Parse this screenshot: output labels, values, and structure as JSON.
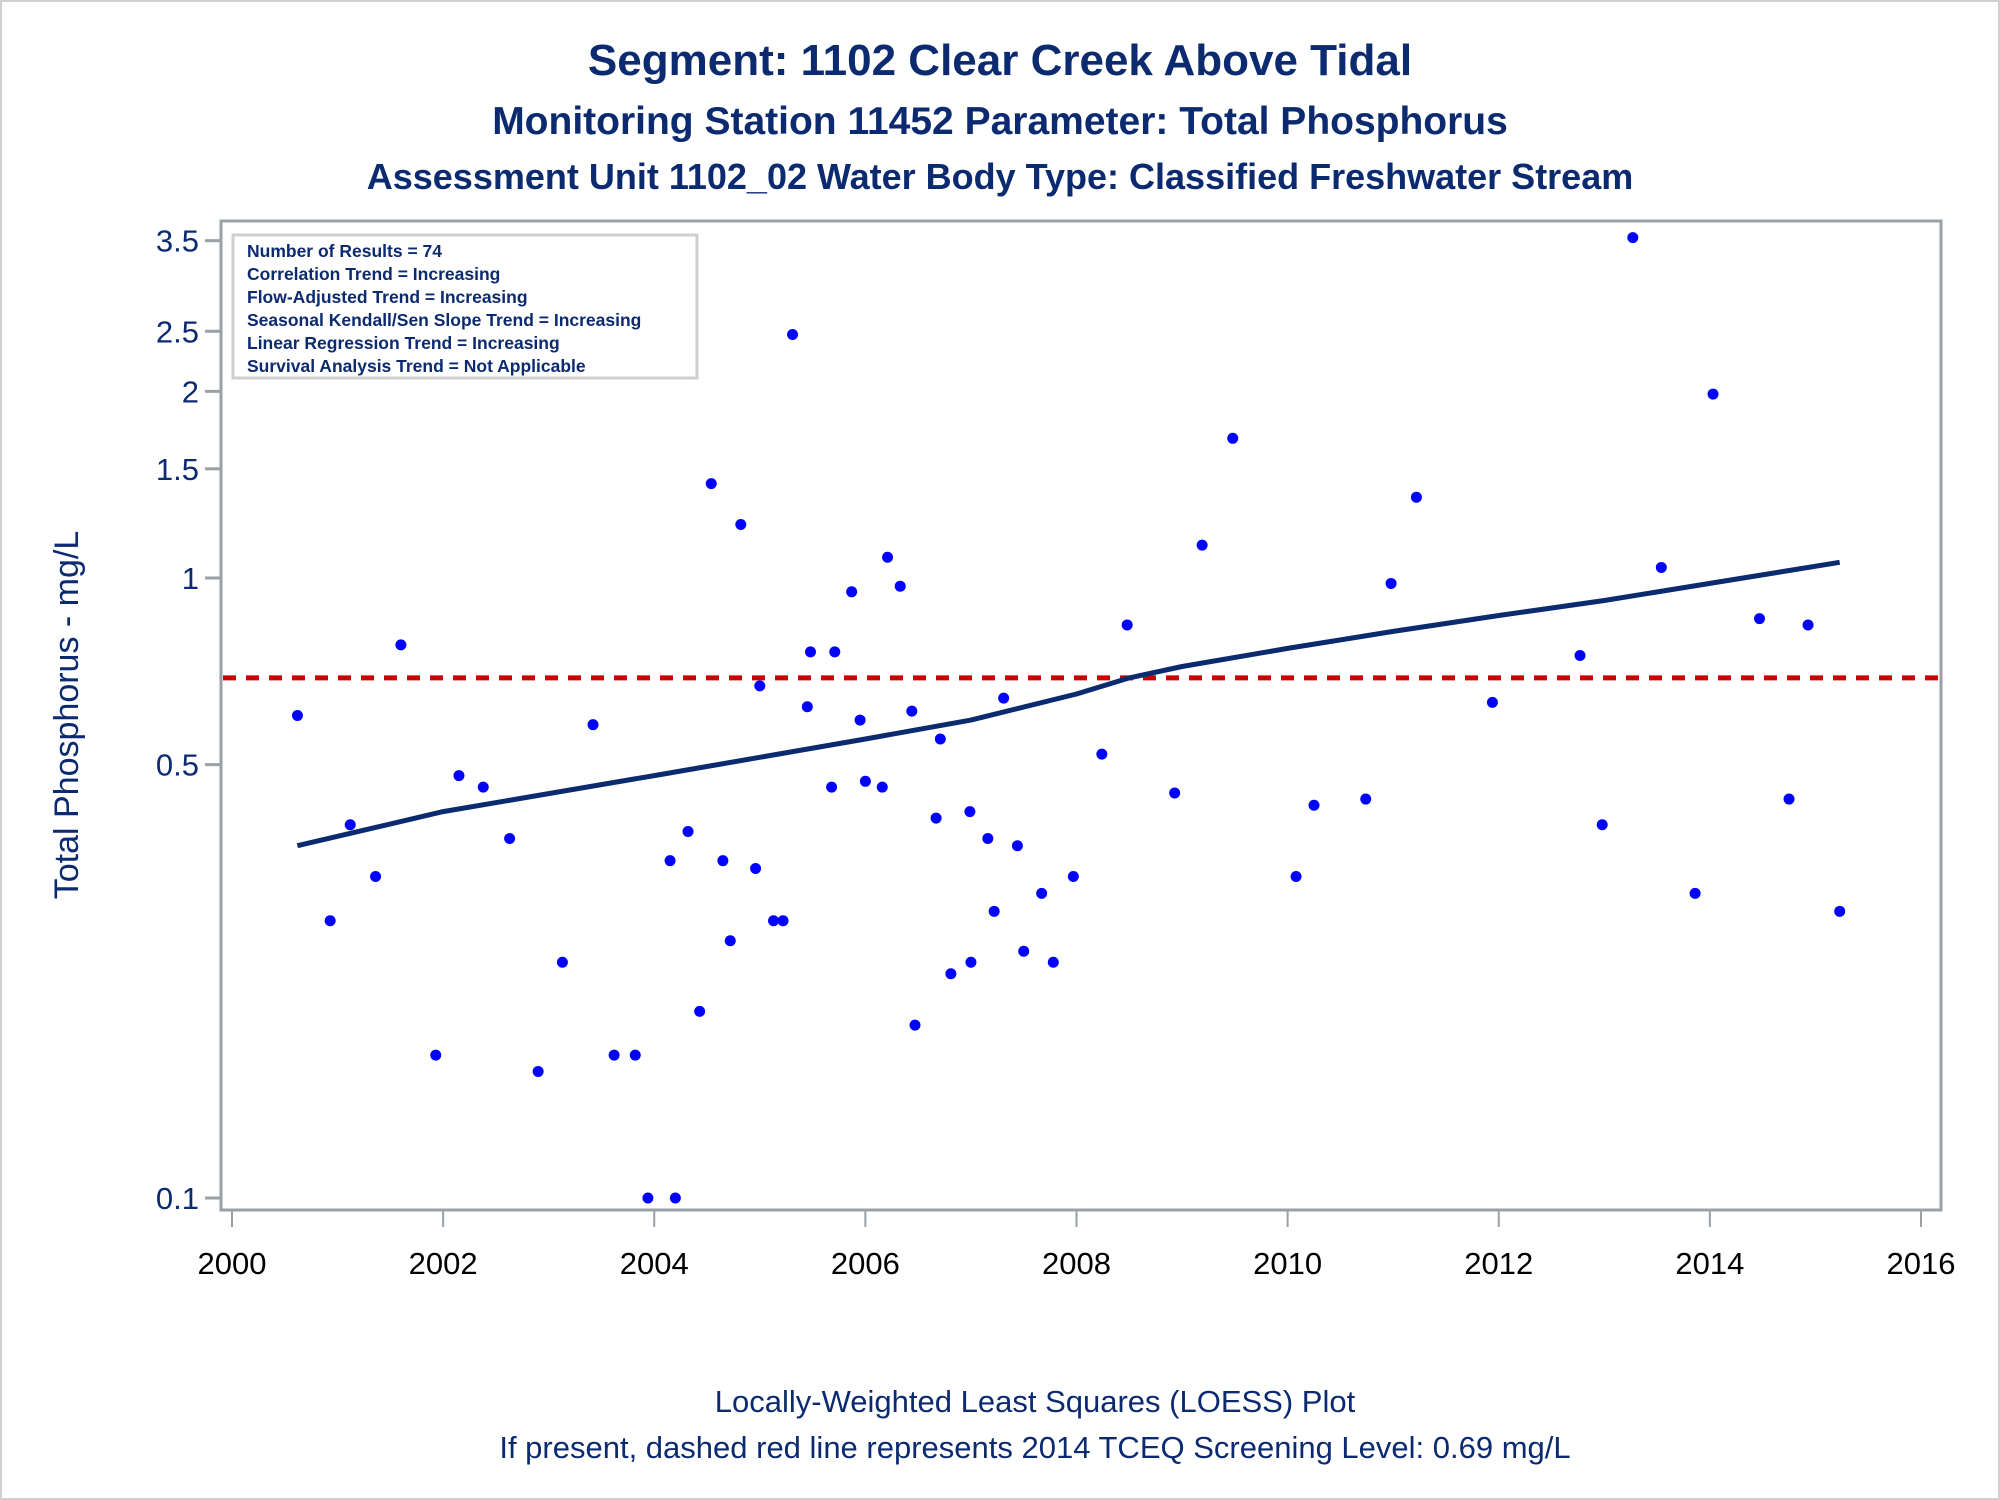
{
  "titles": {
    "line1": "Segment: 1102  Clear Creek Above Tidal",
    "line2": "Monitoring Station 11452 Parameter: Total Phosphorus",
    "line3": "Assessment Unit 1102_02   Water Body Type: Classified Freshwater Stream"
  },
  "footnotes": {
    "line1": "Locally-Weighted Least Squares (LOESS) Plot",
    "line2": "If present, dashed red line represents 2014 TCEQ Screening Level: 0.69 mg/L"
  },
  "inset": [
    "Number of Results = 74",
    "Correlation Trend = Increasing",
    "Flow-Adjusted Trend = Increasing",
    "Seasonal Kendall/Sen Slope Trend = Increasing",
    "Linear Regression Trend = Increasing",
    "Survival Analysis Trend = Not Applicable"
  ],
  "colors": {
    "points": "#0000ff",
    "loess": "#0b2a6f",
    "screening": "#cc0000",
    "axis": "#9aa0a6",
    "text": "#0b2a6f"
  },
  "chart_data": {
    "type": "scatter",
    "title": "Segment: 1102  Clear Creek Above Tidal",
    "xlabel": "",
    "ylabel": "Total Phosphorus - mg/L",
    "yscale": "log",
    "xlim": [
      2000,
      2016
    ],
    "ylim": [
      0.095,
      3.7
    ],
    "xticks": [
      2000,
      2002,
      2004,
      2006,
      2008,
      2010,
      2012,
      2014,
      2016
    ],
    "yticks": [
      0.1,
      0.5,
      1,
      1.5,
      2,
      2.5,
      3.5
    ],
    "ytick_labels": [
      "0.1",
      "0.5",
      "1",
      "1.5",
      "2",
      "2.5",
      "3.5"
    ],
    "grid": false,
    "legend": "inset top-left",
    "screening_level": 0.69,
    "series": [
      {
        "name": "Total Phosphorus observations",
        "x": [
          2000.62,
          2000.93,
          2001.12,
          2001.36,
          2001.6,
          2001.93,
          2002.15,
          2002.38,
          2002.63,
          2002.9,
          2003.13,
          2003.42,
          2003.62,
          2003.82,
          2003.94,
          2004.2,
          2004.15,
          2004.32,
          2004.43,
          2004.54,
          2004.65,
          2004.72,
          2004.82,
          2004.96,
          2005.0,
          2005.13,
          2005.22,
          2005.31,
          2005.45,
          2005.48,
          2005.68,
          2005.71,
          2005.87,
          2005.95,
          2006.0,
          2006.16,
          2006.21,
          2006.33,
          2006.44,
          2006.47,
          2006.67,
          2006.71,
          2006.81,
          2006.99,
          2007.0,
          2007.16,
          2007.22,
          2007.31,
          2007.44,
          2007.5,
          2007.67,
          2007.78,
          2007.97,
          2008.24,
          2008.48,
          2008.93,
          2009.19,
          2009.48,
          2010.08,
          2010.25,
          2010.74,
          2010.98,
          2011.22,
          2011.94,
          2012.77,
          2012.98,
          2013.27,
          2013.54,
          2013.86,
          2014.03,
          2014.47,
          2014.75,
          2014.93,
          2015.23
        ],
        "y": [
          0.6,
          0.28,
          0.4,
          0.33,
          0.78,
          0.17,
          0.48,
          0.46,
          0.38,
          0.16,
          0.24,
          0.58,
          0.17,
          0.17,
          0.1,
          0.1,
          0.35,
          0.39,
          0.2,
          1.42,
          0.35,
          0.26,
          1.22,
          0.34,
          0.67,
          0.28,
          0.28,
          2.47,
          0.62,
          0.76,
          0.46,
          0.76,
          0.95,
          0.59,
          0.47,
          0.46,
          1.08,
          0.97,
          0.61,
          0.19,
          0.41,
          0.55,
          0.23,
          0.42,
          0.24,
          0.38,
          0.29,
          0.64,
          0.37,
          0.25,
          0.31,
          0.24,
          0.33,
          0.52,
          0.84,
          0.45,
          1.13,
          1.68,
          0.33,
          0.43,
          0.44,
          0.98,
          1.35,
          0.63,
          0.75,
          0.4,
          3.54,
          1.04,
          0.31,
          1.98,
          0.86,
          0.44,
          0.84,
          0.29
        ]
      },
      {
        "name": "LOESS fit",
        "x": [
          2000.62,
          2002.0,
          2004.0,
          2006.0,
          2007.0,
          2008.0,
          2008.5,
          2009.0,
          2010.0,
          2011.0,
          2012.0,
          2013.0,
          2014.0,
          2015.23
        ],
        "y": [
          0.37,
          0.42,
          0.48,
          0.55,
          0.59,
          0.65,
          0.69,
          0.72,
          0.77,
          0.82,
          0.87,
          0.92,
          0.98,
          1.06
        ]
      }
    ]
  }
}
